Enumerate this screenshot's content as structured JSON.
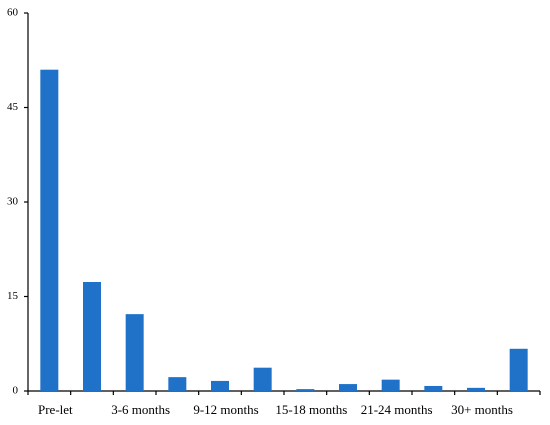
{
  "chart_data": {
    "type": "bar",
    "categories": [
      "Pre-let",
      null,
      "3-6 months",
      null,
      "9-12 months",
      null,
      "15-18 months",
      null,
      "21-24 months",
      null,
      "30+ months",
      null
    ],
    "values": [
      51,
      17.3,
      12.2,
      2.2,
      1.6,
      3.7,
      0.3,
      1.1,
      1.8,
      0.8,
      0.5,
      6.7
    ],
    "color": "#1f72c8",
    "ylim": [
      0,
      60
    ],
    "yticks": [
      0,
      15,
      30,
      45,
      60
    ],
    "grid": false
  }
}
